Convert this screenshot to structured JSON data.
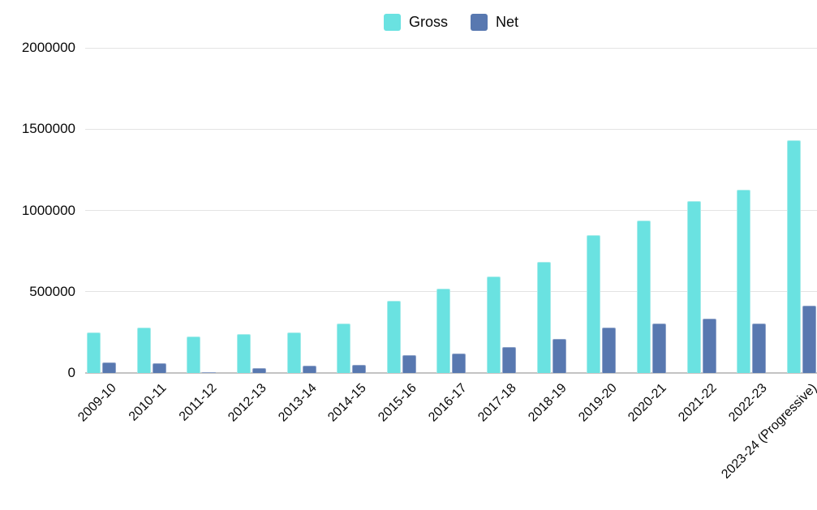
{
  "chart_data": {
    "type": "bar",
    "title": "",
    "xlabel": "",
    "ylabel": "",
    "categories": [
      "2009-10",
      "2010-11",
      "2011-12",
      "2012-13",
      "2013-14",
      "2014-15",
      "2015-16",
      "2016-17",
      "2017-18",
      "2018-19",
      "2019-20",
      "2020-21",
      "2021-22",
      "2022-23",
      "2023-24 (Progressive)"
    ],
    "series": [
      {
        "name": "Gross",
        "color": "#6ae2e1",
        "border_color": "#a6ecea",
        "values": [
          251000,
          278000,
          226000,
          240000,
          250000,
          304000,
          445000,
          519000,
          595000,
          683000,
          848000,
          939000,
          1056000,
          1129000,
          1433000
        ]
      },
      {
        "name": "Net",
        "color": "#5878b0",
        "border_color": "#8fa3c9",
        "values": [
          63000,
          58000,
          6000,
          30000,
          45000,
          50000,
          108000,
          120000,
          158000,
          210000,
          278000,
          306000,
          336000,
          304000,
          415000
        ]
      }
    ],
    "ylim": [
      0,
      2000000
    ],
    "yticks": [
      0,
      500000,
      1000000,
      1500000,
      2000000
    ],
    "grid": true,
    "legend_position": "top-center",
    "x_tick_rotation": -45
  },
  "colors": {
    "background": "#ffffff",
    "gridline": "#e3e3e3",
    "baseline": "#c3c3c3",
    "text": "#0a0a0a"
  }
}
